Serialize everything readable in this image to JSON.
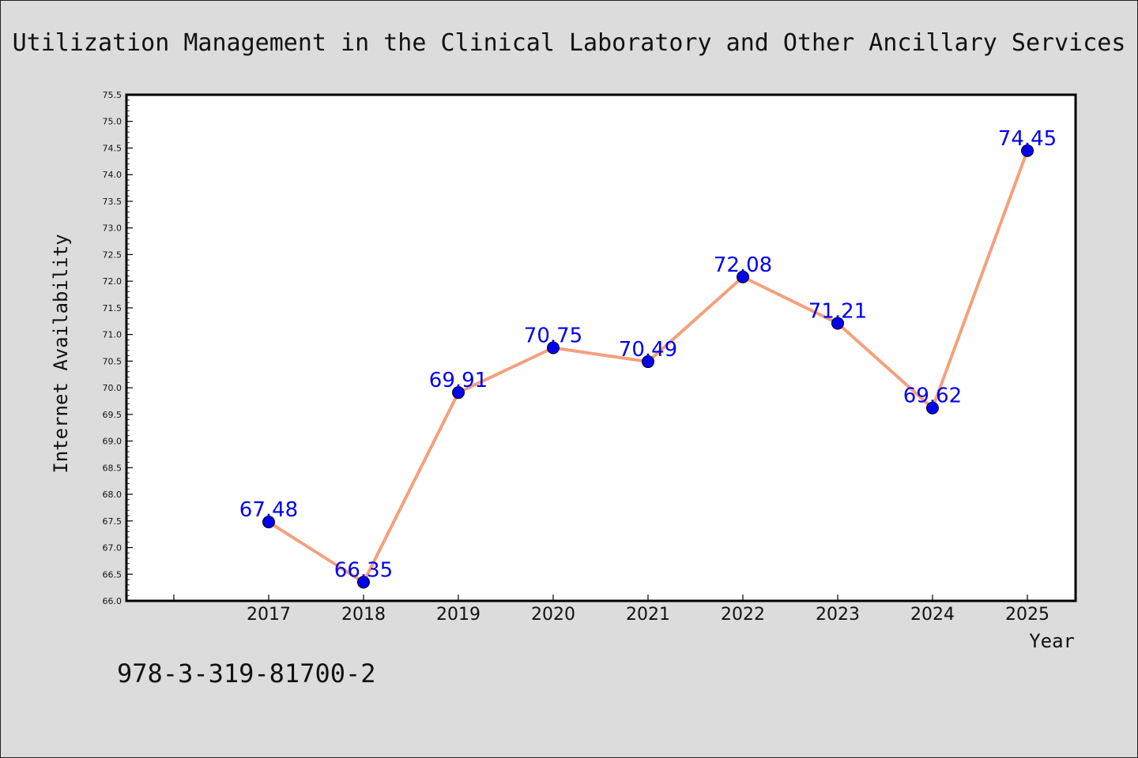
{
  "chart_data": {
    "type": "line",
    "title": "Utilization Management in the Clinical Laboratory and Other Ancillary Services",
    "xlabel": "Year",
    "ylabel": "Internet Availability",
    "categories": [
      "2017",
      "2018",
      "2019",
      "2020",
      "2021",
      "2022",
      "2023",
      "2024",
      "2025"
    ],
    "series": [
      {
        "values": [
          67.48,
          66.35,
          69.91,
          70.75,
          70.49,
          72.08,
          71.21,
          69.62,
          74.45
        ],
        "labels": [
          "67.48",
          "66.35",
          "69.91",
          "70.75",
          "70.49",
          "72.08",
          "71.21",
          "69.62",
          "74.45"
        ]
      }
    ],
    "ylim": [
      66.0,
      75.5
    ],
    "yticks": [
      "66.0",
      "66.5",
      "67.0",
      "67.5",
      "68.0",
      "68.5",
      "69.0",
      "69.5",
      "70.0",
      "70.5",
      "71.0",
      "71.5",
      "72.0",
      "72.5",
      "73.0",
      "73.5",
      "74.0",
      "74.5",
      "75.0",
      "75.5"
    ],
    "grid": false,
    "legend": "none",
    "line_color": "#f4a07e",
    "marker_color": "#0000ee",
    "label_color": "#0000ee"
  },
  "footer": {
    "isbn": "978-3-319-81700-2"
  }
}
